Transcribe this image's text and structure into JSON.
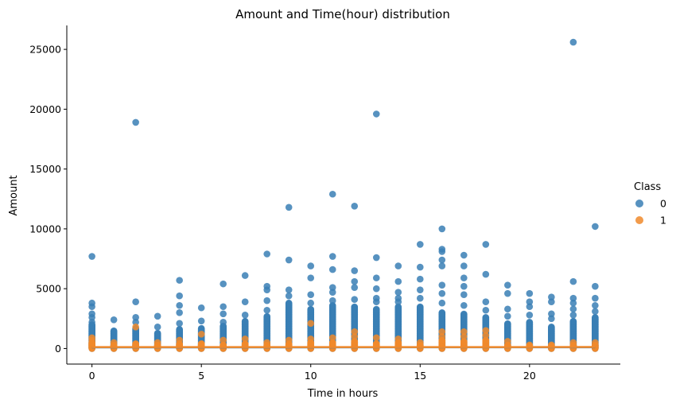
{
  "chart_data": {
    "type": "scatter",
    "title": "Amount and Time(hour) distribution",
    "xlabel": "Time in hours",
    "ylabel": "Amount",
    "xlim": [
      -1.15,
      24.15
    ],
    "ylim": [
      -1300,
      27000
    ],
    "xticks": [
      0,
      5,
      10,
      15,
      20
    ],
    "yticks": [
      0,
      5000,
      10000,
      15000,
      20000,
      25000
    ],
    "grid": false,
    "legend": {
      "title": "Class",
      "placement": "right"
    },
    "series": [
      {
        "name": "0",
        "color": "#3a7fb5",
        "columns": [
          {
            "x": 0,
            "band_max": 2000,
            "outliers": [
              2200,
              2600,
              2900,
              3500,
              3800,
              7700
            ]
          },
          {
            "x": 1,
            "band_max": 1500,
            "outliers": [
              2400
            ]
          },
          {
            "x": 2,
            "band_max": 1700,
            "outliers": [
              2200,
              2600,
              3900,
              18900
            ]
          },
          {
            "x": 3,
            "band_max": 1300,
            "outliers": [
              1800,
              2700
            ]
          },
          {
            "x": 4,
            "band_max": 1600,
            "outliers": [
              2100,
              3000,
              3600,
              4400,
              5700
            ]
          },
          {
            "x": 5,
            "band_max": 1700,
            "outliers": [
              2300,
              3400
            ]
          },
          {
            "x": 6,
            "band_max": 1900,
            "outliers": [
              2200,
              2900,
              3500,
              5400
            ]
          },
          {
            "x": 7,
            "band_max": 2300,
            "outliers": [
              2800,
              3900,
              6100
            ]
          },
          {
            "x": 8,
            "band_max": 2700,
            "outliers": [
              3200,
              4000,
              4900,
              5200,
              7900
            ]
          },
          {
            "x": 9,
            "band_max": 3800,
            "outliers": [
              4400,
              4900,
              7400,
              11800
            ]
          },
          {
            "x": 10,
            "band_max": 3300,
            "outliers": [
              3800,
              4500,
              5900,
              6900
            ]
          },
          {
            "x": 11,
            "band_max": 3600,
            "outliers": [
              4000,
              4700,
              5100,
              6600,
              7700,
              12900
            ]
          },
          {
            "x": 12,
            "band_max": 3500,
            "outliers": [
              4100,
              5100,
              5600,
              6500,
              11900
            ]
          },
          {
            "x": 13,
            "band_max": 3300,
            "outliers": [
              3900,
              4200,
              5000,
              5900,
              7600,
              19600
            ]
          },
          {
            "x": 14,
            "band_max": 3500,
            "outliers": [
              3900,
              4200,
              4700,
              5600,
              6900
            ]
          },
          {
            "x": 15,
            "band_max": 3500,
            "outliers": [
              4200,
              4900,
              5800,
              6800,
              8700
            ]
          },
          {
            "x": 16,
            "band_max": 3000,
            "outliers": [
              3800,
              4600,
              5300,
              6900,
              7400,
              8100,
              8300,
              10000
            ]
          },
          {
            "x": 17,
            "band_max": 2900,
            "outliers": [
              3600,
              4500,
              5200,
              5900,
              6900,
              7800
            ]
          },
          {
            "x": 18,
            "band_max": 2600,
            "outliers": [
              3200,
              3900,
              6200,
              8700
            ]
          },
          {
            "x": 19,
            "band_max": 2100,
            "outliers": [
              2700,
              3300,
              4600,
              5300
            ]
          },
          {
            "x": 20,
            "band_max": 2200,
            "outliers": [
              2800,
              3500,
              3900,
              4600
            ]
          },
          {
            "x": 21,
            "band_max": 1800,
            "outliers": [
              2500,
              2900,
              3900,
              4300
            ]
          },
          {
            "x": 22,
            "band_max": 2300,
            "outliers": [
              2800,
              3300,
              3800,
              4200,
              5600,
              25600
            ]
          },
          {
            "x": 23,
            "band_max": 2600,
            "outliers": [
              3100,
              3600,
              4200,
              5200,
              10200
            ]
          }
        ]
      },
      {
        "name": "1",
        "color": "#f0892b",
        "columns": [
          {
            "x": 0,
            "band_max": 500,
            "outliers": [
              700,
              900
            ]
          },
          {
            "x": 1,
            "band_max": 300,
            "outliers": [
              500
            ]
          },
          {
            "x": 2,
            "band_max": 400,
            "outliers": [
              1800
            ]
          },
          {
            "x": 3,
            "band_max": 300,
            "outliers": [
              500
            ]
          },
          {
            "x": 4,
            "band_max": 400,
            "outliers": [
              700
            ]
          },
          {
            "x": 5,
            "band_max": 400,
            "outliers": [
              1200
            ]
          },
          {
            "x": 6,
            "band_max": 300,
            "outliers": [
              700
            ]
          },
          {
            "x": 7,
            "band_max": 400,
            "outliers": [
              800
            ]
          },
          {
            "x": 8,
            "band_max": 300,
            "outliers": [
              500
            ]
          },
          {
            "x": 9,
            "band_max": 400,
            "outliers": [
              700
            ]
          },
          {
            "x": 10,
            "band_max": 500,
            "outliers": [
              800,
              2100
            ]
          },
          {
            "x": 11,
            "band_max": 500,
            "outliers": [
              900
            ]
          },
          {
            "x": 12,
            "band_max": 600,
            "outliers": [
              1000,
              1400
            ]
          },
          {
            "x": 13,
            "band_max": 400,
            "outliers": [
              900
            ]
          },
          {
            "x": 14,
            "band_max": 500,
            "outliers": [
              800
            ]
          },
          {
            "x": 15,
            "band_max": 300,
            "outliers": [
              500
            ]
          },
          {
            "x": 16,
            "band_max": 700,
            "outliers": [
              1000,
              1400
            ]
          },
          {
            "x": 17,
            "band_max": 600,
            "outliers": [
              1000,
              1400
            ]
          },
          {
            "x": 18,
            "band_max": 700,
            "outliers": [
              1100,
              1500
            ]
          },
          {
            "x": 19,
            "band_max": 300,
            "outliers": [
              600
            ]
          },
          {
            "x": 20,
            "band_max": 200,
            "outliers": [
              300
            ]
          },
          {
            "x": 21,
            "band_max": 200,
            "outliers": [
              300
            ]
          },
          {
            "x": 22,
            "band_max": 300,
            "outliers": [
              500
            ]
          },
          {
            "x": 23,
            "band_max": 300,
            "outliers": [
              500
            ]
          }
        ]
      }
    ],
    "regression_lines": [
      {
        "series": "0",
        "color": "#3a7fb5",
        "y_start": 95,
        "y_end": 105
      },
      {
        "series": "1",
        "color": "#f0892b",
        "y_start": 120,
        "y_end": 125
      }
    ]
  }
}
